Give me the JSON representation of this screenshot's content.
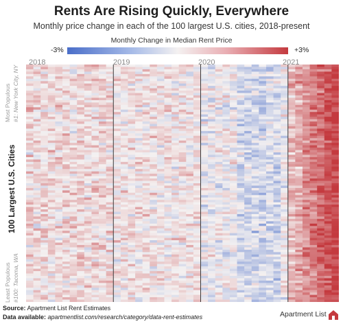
{
  "title": "Rents Are Rising Quickly, Everywhere",
  "subtitle": "Monthly price change in each of the 100 largest U.S. cities, 2018-present",
  "legend": {
    "title": "Monthly Change in Median Rent Price",
    "min_label": "-3%",
    "max_label": "+3%",
    "colors": {
      "negative": "#4a6ec9",
      "neutral": "#f4f1f1",
      "positive": "#c43a3f"
    }
  },
  "y_axis": {
    "label": "100 Largest U.S. Cities",
    "top_annotation_line1": "Most Populous",
    "top_annotation_line2": "#1: New York City, NY",
    "bottom_annotation_line1": "Least Populous",
    "bottom_annotation_line2": "#100: Tacoma, WA"
  },
  "footer": {
    "source_label": "Source:",
    "source_text": "Apartment List Rent Estimates",
    "data_label": "Data available:",
    "data_url": "apartmentlist.com/research/category/data-rent-estimates"
  },
  "brand": {
    "name": "Apartment List",
    "logo_color": "#c43a3f"
  },
  "chart_data": {
    "type": "heatmap",
    "title": "Rents Are Rising Quickly, Everywhere",
    "subtitle": "Monthly price change in each of the 100 largest U.S. cities, 2018-present",
    "xlabel": "",
    "ylabel": "100 Largest U.S. Cities",
    "x_ticks": [
      "2018",
      "2019",
      "2020",
      "2021"
    ],
    "n_rows": 100,
    "n_columns": 43,
    "columns_per_year": 12,
    "value_range": [
      -3,
      3
    ],
    "value_unit": "% monthly change in median rent",
    "legend_position": "top",
    "grid": false,
    "year_profiles": [
      {
        "year": "2018",
        "typical_change": 0.4,
        "note": "mostly light red with scattered blue"
      },
      {
        "year": "2019",
        "typical_change": 0.2,
        "note": "pale, near zero"
      },
      {
        "year": "2020",
        "typical_change": -0.1,
        "note": "mixed, with blue bands later in year"
      },
      {
        "year": "2021",
        "typical_change": 1.8,
        "note": "strong red, intensifying to ~+3%"
      }
    ]
  }
}
